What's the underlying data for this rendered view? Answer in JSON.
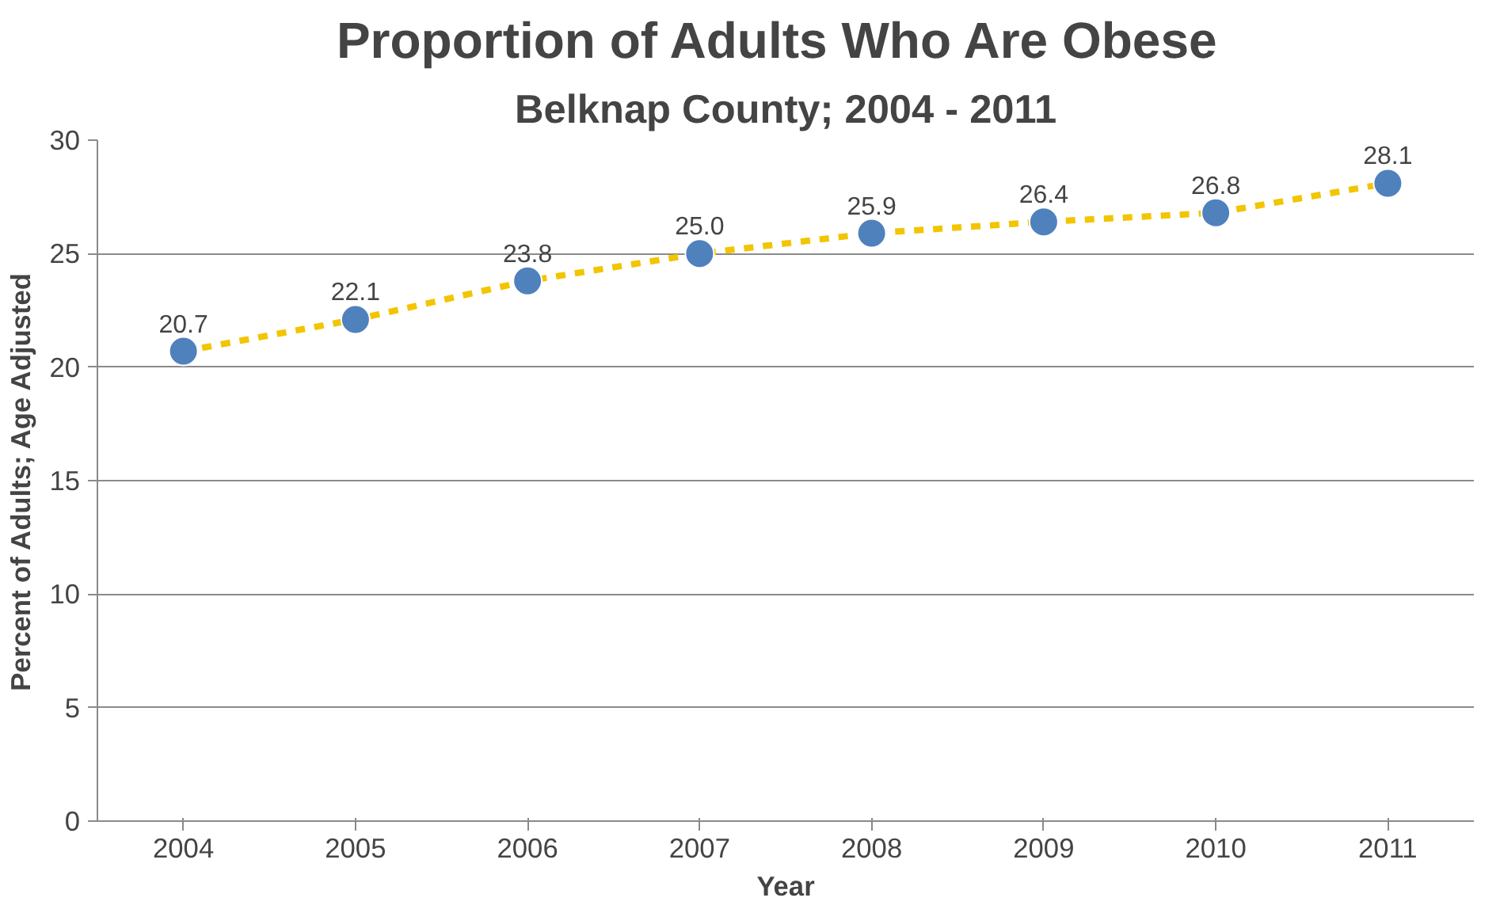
{
  "chart_data": {
    "type": "line",
    "title": "Proportion  of Adults Who Are Obese",
    "subtitle": "Belknap County; 2004 - 2011",
    "xlabel": "Year",
    "ylabel": "Percent of Adults; Age Adjusted",
    "categories": [
      "2004",
      "2005",
      "2006",
      "2007",
      "2008",
      "2009",
      "2010",
      "2011"
    ],
    "series": [
      {
        "color": "#f2c500",
        "colors": [
          "#4f81bd",
          "#4f81bd",
          "#4f81bd",
          "#4f81bd",
          "#4f81bd",
          "#4f81bd",
          "#4f81bd",
          "#4f81bd"
        ],
        "values": [
          20.7,
          22.1,
          23.8,
          25.0,
          25.9,
          26.4,
          26.8,
          28.1
        ],
        "value_labels": [
          "20.7",
          "22.1",
          "23.8",
          "25.0",
          "25.9",
          "26.4",
          "26.8",
          "28.1"
        ]
      }
    ],
    "ylim": [
      0,
      30
    ],
    "yticks": [
      0,
      5,
      10,
      15,
      20,
      25,
      30
    ],
    "grid": "y",
    "marker": "circle",
    "line_style": "dashed"
  }
}
